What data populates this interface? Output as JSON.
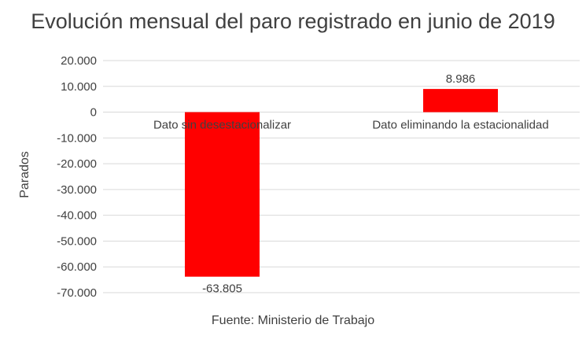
{
  "chart_data": {
    "type": "bar",
    "title": "Evolución mensual del paro registrado en junio de 2019",
    "ylabel": "Parados",
    "xlabel": "",
    "source": "Fuente: Ministerio de Trabajo",
    "categories": [
      "Dato sin desestacionalizar",
      "Dato eliminando la estacionalidad"
    ],
    "values": [
      -63805,
      8986
    ],
    "value_labels": [
      "-63.805",
      "8.986"
    ],
    "ylim": [
      -70000,
      20000
    ],
    "yticks": [
      20000,
      10000,
      0,
      -10000,
      -20000,
      -30000,
      -40000,
      -50000,
      -60000,
      -70000
    ],
    "ytick_labels": [
      "20.000",
      "10.000",
      "0",
      "-10.000",
      "-20.000",
      "-30.000",
      "-40.000",
      "-50.000",
      "-60.000",
      "-70.000"
    ],
    "grid": true,
    "bar_color": "#ff0000",
    "grid_color": "#d9d9d9"
  }
}
